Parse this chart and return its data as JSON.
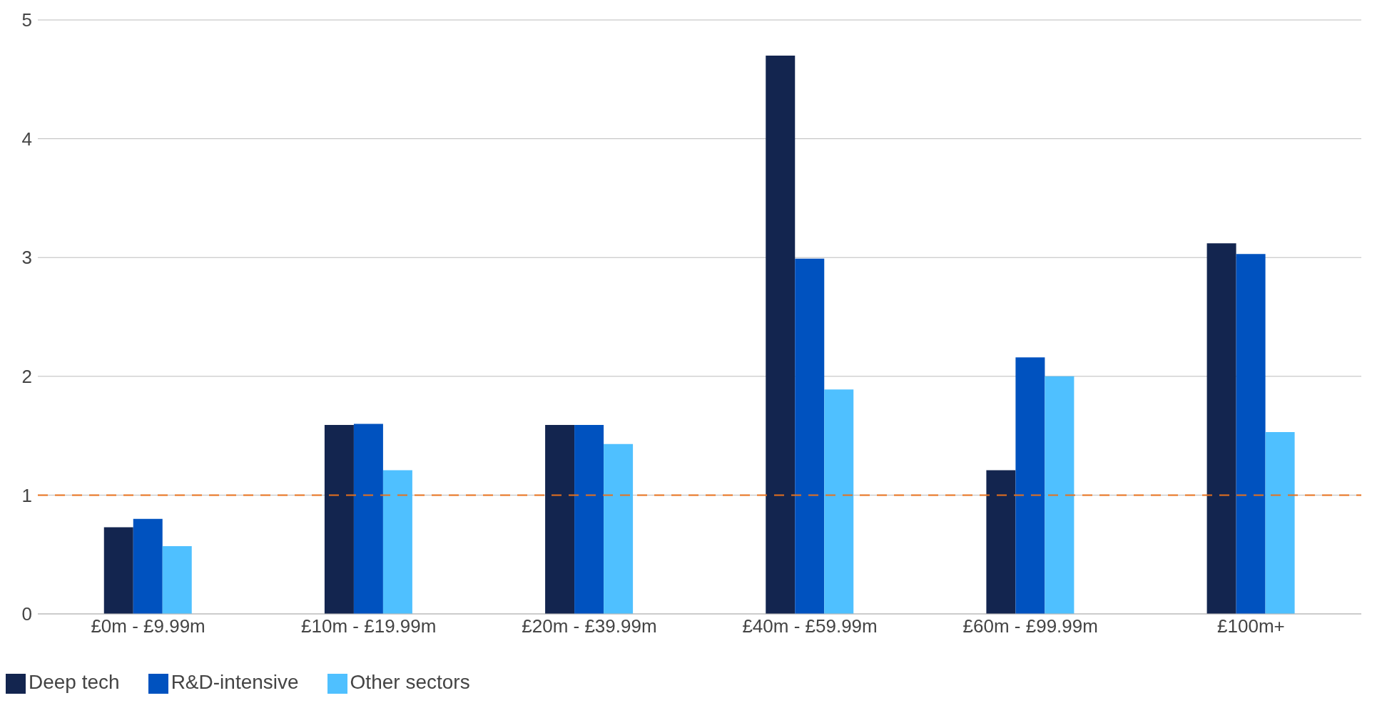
{
  "chart_data": {
    "type": "bar",
    "categories": [
      "£0m - £9.99m",
      "£10m - £19.99m",
      "£20m - £39.99m",
      "£40m - £59.99m",
      "£60m - £99.99m",
      "£100m+"
    ],
    "series": [
      {
        "name": "Deep tech",
        "color": "#13254f",
        "values": [
          0.73,
          1.59,
          1.59,
          4.7,
          1.21,
          3.12
        ]
      },
      {
        "name": "R&D-intensive",
        "color": "#0052bf",
        "values": [
          0.8,
          1.6,
          1.59,
          2.99,
          2.16,
          3.03
        ]
      },
      {
        "name": "Other sectors",
        "color": "#4fc0ff",
        "values": [
          0.57,
          1.21,
          1.43,
          1.89,
          2.0,
          1.53
        ]
      }
    ],
    "ylim": [
      0,
      5
    ],
    "yticks": [
      0,
      1,
      2,
      3,
      4,
      5
    ],
    "grid": "y",
    "legend": "bottom left",
    "ref_lines": [
      {
        "axis": "y",
        "value": 1,
        "color": "#e8711c",
        "line_style": "dashed"
      }
    ]
  }
}
